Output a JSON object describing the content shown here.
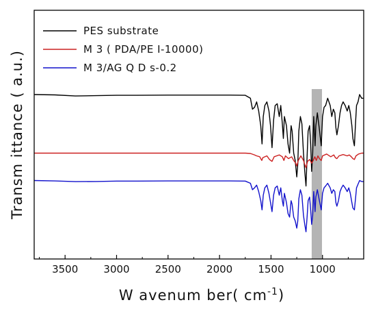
{
  "chart_data": {
    "type": "line",
    "xlabel": "W avenum ber( cm",
    "xlabel_sup": "-1",
    "xlabel_close": ")",
    "ylabel": "Transm ittance ( a.u.)",
    "xlim": [
      3800,
      600
    ],
    "x_reversed": true,
    "y_ticks_shown": false,
    "xticks": [
      3500,
      3000,
      2500,
      2000,
      1500,
      1000
    ],
    "xtick_labels": [
      "3500",
      "3000",
      "2500",
      "2000",
      "1500",
      "1000"
    ],
    "grid": false,
    "legend_position": "top-left",
    "highlight_band": {
      "x_range": [
        1105,
        1005
      ],
      "color": "#b4b4b4"
    },
    "series": [
      {
        "name": "PES substrate",
        "color": "#000000",
        "baseline": 0.72,
        "points": [
          [
            3800,
            0.72
          ],
          [
            3600,
            0.718
          ],
          [
            3400,
            0.712
          ],
          [
            3200,
            0.714
          ],
          [
            3000,
            0.716
          ],
          [
            2800,
            0.716
          ],
          [
            2500,
            0.717
          ],
          [
            2200,
            0.717
          ],
          [
            1900,
            0.717
          ],
          [
            1750,
            0.716
          ],
          [
            1700,
            0.7
          ],
          [
            1680,
            0.64
          ],
          [
            1660,
            0.65
          ],
          [
            1640,
            0.68
          ],
          [
            1620,
            0.63
          ],
          [
            1600,
            0.55
          ],
          [
            1587,
            0.45
          ],
          [
            1575,
            0.6
          ],
          [
            1560,
            0.66
          ],
          [
            1540,
            0.68
          ],
          [
            1520,
            0.63
          ],
          [
            1505,
            0.55
          ],
          [
            1490,
            0.43
          ],
          [
            1475,
            0.58
          ],
          [
            1460,
            0.66
          ],
          [
            1440,
            0.67
          ],
          [
            1420,
            0.6
          ],
          [
            1405,
            0.66
          ],
          [
            1390,
            0.56
          ],
          [
            1380,
            0.48
          ],
          [
            1370,
            0.6
          ],
          [
            1350,
            0.55
          ],
          [
            1335,
            0.45
          ],
          [
            1320,
            0.4
          ],
          [
            1305,
            0.55
          ],
          [
            1295,
            0.52
          ],
          [
            1280,
            0.4
          ],
          [
            1265,
            0.36
          ],
          [
            1250,
            0.27
          ],
          [
            1240,
            0.34
          ],
          [
            1230,
            0.52
          ],
          [
            1215,
            0.6
          ],
          [
            1200,
            0.56
          ],
          [
            1185,
            0.4
          ],
          [
            1172,
            0.3
          ],
          [
            1160,
            0.22
          ],
          [
            1150,
            0.38
          ],
          [
            1140,
            0.52
          ],
          [
            1125,
            0.55
          ],
          [
            1115,
            0.45
          ],
          [
            1105,
            0.3
          ],
          [
            1095,
            0.4
          ],
          [
            1085,
            0.6
          ],
          [
            1072,
            0.44
          ],
          [
            1065,
            0.55
          ],
          [
            1050,
            0.62
          ],
          [
            1030,
            0.53
          ],
          [
            1012,
            0.44
          ],
          [
            1000,
            0.6
          ],
          [
            985,
            0.65
          ],
          [
            970,
            0.66
          ],
          [
            950,
            0.7
          ],
          [
            925,
            0.66
          ],
          [
            910,
            0.6
          ],
          [
            895,
            0.64
          ],
          [
            880,
            0.62
          ],
          [
            870,
            0.54
          ],
          [
            860,
            0.5
          ],
          [
            845,
            0.55
          ],
          [
            830,
            0.62
          ],
          [
            815,
            0.66
          ],
          [
            800,
            0.68
          ],
          [
            780,
            0.66
          ],
          [
            760,
            0.63
          ],
          [
            745,
            0.66
          ],
          [
            730,
            0.62
          ],
          [
            715,
            0.55
          ],
          [
            705,
            0.48
          ],
          [
            690,
            0.44
          ],
          [
            680,
            0.56
          ],
          [
            670,
            0.66
          ],
          [
            655,
            0.68
          ],
          [
            640,
            0.72
          ],
          [
            620,
            0.7
          ],
          [
            600,
            0.7
          ]
        ]
      },
      {
        "name": "M 3 ( PDA/PE I-10000)",
        "color": "#cc2020",
        "baseline": 0.4,
        "points": [
          [
            3800,
            0.4
          ],
          [
            3500,
            0.4
          ],
          [
            3000,
            0.4
          ],
          [
            2500,
            0.4
          ],
          [
            2000,
            0.4
          ],
          [
            1750,
            0.4
          ],
          [
            1700,
            0.398
          ],
          [
            1660,
            0.39
          ],
          [
            1640,
            0.385
          ],
          [
            1610,
            0.38
          ],
          [
            1590,
            0.36
          ],
          [
            1580,
            0.375
          ],
          [
            1540,
            0.385
          ],
          [
            1515,
            0.365
          ],
          [
            1490,
            0.355
          ],
          [
            1470,
            0.38
          ],
          [
            1420,
            0.39
          ],
          [
            1390,
            0.38
          ],
          [
            1375,
            0.36
          ],
          [
            1360,
            0.385
          ],
          [
            1330,
            0.37
          ],
          [
            1300,
            0.38
          ],
          [
            1280,
            0.36
          ],
          [
            1260,
            0.345
          ],
          [
            1250,
            0.33
          ],
          [
            1235,
            0.36
          ],
          [
            1210,
            0.385
          ],
          [
            1185,
            0.36
          ],
          [
            1170,
            0.335
          ],
          [
            1160,
            0.32
          ],
          [
            1145,
            0.355
          ],
          [
            1125,
            0.365
          ],
          [
            1105,
            0.345
          ],
          [
            1090,
            0.36
          ],
          [
            1075,
            0.38
          ],
          [
            1060,
            0.36
          ],
          [
            1045,
            0.385
          ],
          [
            1030,
            0.37
          ],
          [
            1012,
            0.36
          ],
          [
            1000,
            0.385
          ],
          [
            960,
            0.395
          ],
          [
            920,
            0.38
          ],
          [
            890,
            0.39
          ],
          [
            875,
            0.375
          ],
          [
            860,
            0.37
          ],
          [
            840,
            0.385
          ],
          [
            800,
            0.392
          ],
          [
            760,
            0.385
          ],
          [
            740,
            0.39
          ],
          [
            720,
            0.38
          ],
          [
            705,
            0.37
          ],
          [
            690,
            0.365
          ],
          [
            675,
            0.385
          ],
          [
            650,
            0.395
          ],
          [
            620,
            0.4
          ],
          [
            600,
            0.4
          ]
        ]
      },
      {
        "name": "M 3/AG Q D s-0.2",
        "color": "#1111cc",
        "baseline": 0.25,
        "points": [
          [
            3800,
            0.25
          ],
          [
            3600,
            0.248
          ],
          [
            3400,
            0.244
          ],
          [
            3200,
            0.245
          ],
          [
            3000,
            0.247
          ],
          [
            2800,
            0.247
          ],
          [
            2500,
            0.248
          ],
          [
            2200,
            0.248
          ],
          [
            1900,
            0.248
          ],
          [
            1750,
            0.247
          ],
          [
            1700,
            0.235
          ],
          [
            1680,
            0.2
          ],
          [
            1660,
            0.21
          ],
          [
            1640,
            0.225
          ],
          [
            1620,
            0.19
          ],
          [
            1600,
            0.14
          ],
          [
            1587,
            0.09
          ],
          [
            1575,
            0.17
          ],
          [
            1560,
            0.21
          ],
          [
            1540,
            0.225
          ],
          [
            1520,
            0.18
          ],
          [
            1505,
            0.13
          ],
          [
            1490,
            0.08
          ],
          [
            1475,
            0.17
          ],
          [
            1460,
            0.21
          ],
          [
            1440,
            0.22
          ],
          [
            1420,
            0.17
          ],
          [
            1405,
            0.21
          ],
          [
            1390,
            0.14
          ],
          [
            1380,
            0.11
          ],
          [
            1370,
            0.18
          ],
          [
            1350,
            0.13
          ],
          [
            1335,
            0.07
          ],
          [
            1320,
            0.05
          ],
          [
            1305,
            0.14
          ],
          [
            1295,
            0.12
          ],
          [
            1280,
            0.05
          ],
          [
            1265,
            0.03
          ],
          [
            1250,
            -0.01
          ],
          [
            1240,
            0.03
          ],
          [
            1230,
            0.15
          ],
          [
            1215,
            0.2
          ],
          [
            1200,
            0.17
          ],
          [
            1185,
            0.06
          ],
          [
            1172,
            0.01
          ],
          [
            1160,
            -0.03
          ],
          [
            1150,
            0.05
          ],
          [
            1140,
            0.14
          ],
          [
            1125,
            0.16
          ],
          [
            1115,
            0.09
          ],
          [
            1105,
            0.01
          ],
          [
            1095,
            0.06
          ],
          [
            1085,
            0.19
          ],
          [
            1072,
            0.08
          ],
          [
            1065,
            0.16
          ],
          [
            1050,
            0.2
          ],
          [
            1030,
            0.14
          ],
          [
            1012,
            0.09
          ],
          [
            1000,
            0.18
          ],
          [
            985,
            0.21
          ],
          [
            970,
            0.22
          ],
          [
            950,
            0.235
          ],
          [
            925,
            0.21
          ],
          [
            910,
            0.18
          ],
          [
            895,
            0.2
          ],
          [
            880,
            0.19
          ],
          [
            870,
            0.13
          ],
          [
            860,
            0.11
          ],
          [
            845,
            0.14
          ],
          [
            830,
            0.19
          ],
          [
            815,
            0.21
          ],
          [
            800,
            0.225
          ],
          [
            780,
            0.21
          ],
          [
            760,
            0.19
          ],
          [
            745,
            0.21
          ],
          [
            730,
            0.18
          ],
          [
            715,
            0.13
          ],
          [
            705,
            0.1
          ],
          [
            690,
            0.09
          ],
          [
            680,
            0.15
          ],
          [
            670,
            0.21
          ],
          [
            655,
            0.23
          ],
          [
            640,
            0.25
          ],
          [
            620,
            0.245
          ],
          [
            600,
            0.245
          ]
        ]
      }
    ]
  }
}
